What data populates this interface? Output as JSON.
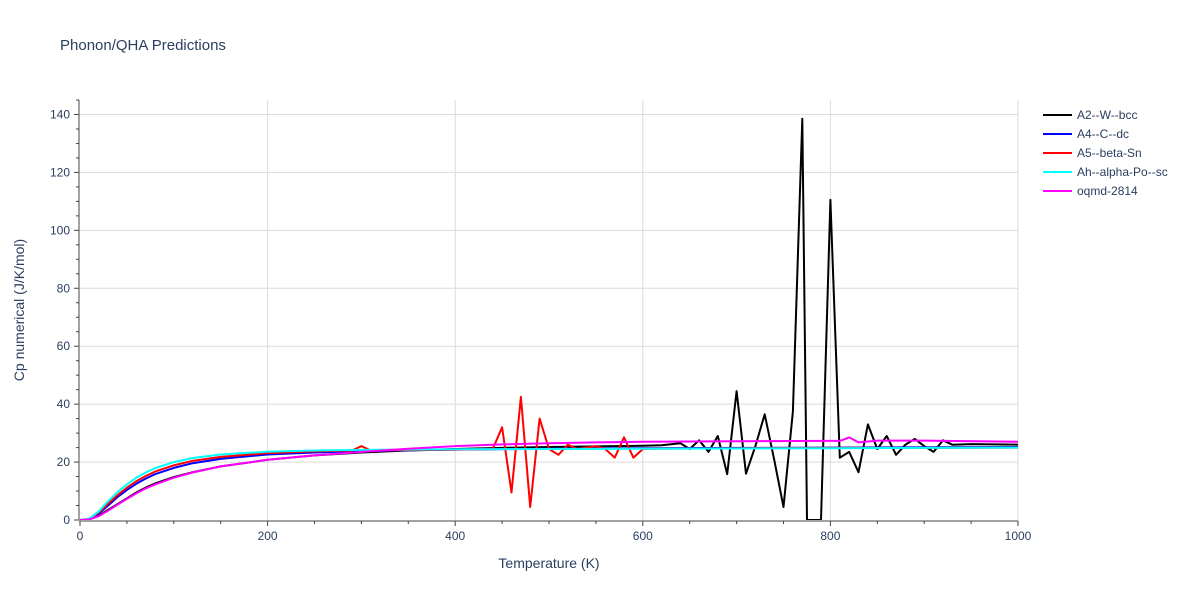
{
  "chart_data": {
    "type": "line",
    "title": "Phonon/QHA Predictions",
    "xlabel": "Temperature (K)",
    "ylabel": "Cp numerical (J/K/mol)",
    "xlim": [
      0,
      1000
    ],
    "ylim": [
      0,
      145
    ],
    "xticks": [
      0,
      200,
      400,
      600,
      800,
      1000
    ],
    "yticks": [
      0,
      20,
      40,
      60,
      80,
      100,
      120,
      140
    ],
    "grid": true,
    "legend_position": "top-right",
    "series": [
      {
        "name": "A2--W--bcc",
        "color": "#000000",
        "x": [
          0,
          10,
          20,
          30,
          40,
          50,
          60,
          70,
          80,
          100,
          120,
          150,
          200,
          250,
          300,
          350,
          400,
          450,
          500,
          550,
          600,
          620,
          640,
          650,
          660,
          670,
          680,
          690,
          700,
          710,
          720,
          730,
          740,
          750,
          760,
          770,
          775,
          780,
          790,
          800,
          810,
          820,
          830,
          840,
          850,
          860,
          870,
          880,
          890,
          900,
          910,
          920,
          930,
          950,
          1000
        ],
        "y": [
          0,
          0.2,
          1.5,
          3.5,
          5.5,
          7.5,
          9.5,
          11.2,
          12.6,
          14.8,
          16.5,
          18.5,
          20.8,
          22.3,
          23.3,
          24.0,
          24.5,
          24.9,
          25.2,
          25.4,
          25.6,
          25.8,
          26.5,
          24.5,
          27.5,
          23.5,
          29.0,
          15.8,
          44.5,
          16.0,
          25.5,
          36.5,
          21.0,
          4.5,
          37.5,
          138.5,
          0,
          0,
          0,
          110.5,
          21.5,
          23.5,
          16.5,
          33.0,
          24.5,
          29.0,
          22.5,
          26.0,
          28.0,
          25.5,
          23.5,
          27.5,
          26.0,
          26.2,
          26.0
        ]
      },
      {
        "name": "A4--C--dc",
        "color": "#0000ff",
        "x": [
          0,
          10,
          20,
          30,
          40,
          50,
          60,
          70,
          80,
          100,
          120,
          150,
          200,
          250,
          300,
          400,
          500,
          600,
          700,
          800,
          900,
          1000
        ],
        "y": [
          0,
          0.3,
          2.2,
          5.0,
          7.9,
          10.4,
          12.5,
          14.3,
          15.8,
          18.0,
          19.6,
          21.1,
          22.6,
          23.3,
          23.8,
          24.3,
          24.6,
          24.8,
          24.9,
          25.0,
          25.1,
          25.2
        ]
      },
      {
        "name": "A5--beta-Sn",
        "color": "#ff0000",
        "x": [
          0,
          10,
          20,
          30,
          40,
          50,
          60,
          70,
          80,
          100,
          120,
          150,
          200,
          250,
          290,
          300,
          310,
          400,
          440,
          450,
          460,
          470,
          480,
          490,
          500,
          510,
          520,
          530,
          540,
          550,
          560,
          570,
          580,
          590,
          600,
          610,
          700,
          800,
          900,
          1000
        ],
        "y": [
          0,
          0.4,
          2.6,
          5.6,
          8.6,
          11.2,
          13.4,
          15.2,
          16.7,
          18.9,
          20.4,
          21.8,
          23.1,
          23.7,
          24.0,
          25.5,
          24.0,
          24.3,
          24.5,
          32.0,
          9.5,
          42.5,
          4.5,
          35.0,
          24.5,
          22.5,
          26.0,
          24.5,
          25.0,
          25.5,
          24.5,
          21.5,
          28.5,
          21.5,
          24.5,
          24.6,
          24.8,
          24.9,
          24.9,
          25.0
        ]
      },
      {
        "name": "Ah--alpha-Po--sc",
        "color": "#00ffff",
        "x": [
          0,
          10,
          20,
          30,
          40,
          50,
          60,
          70,
          80,
          100,
          120,
          150,
          200,
          250,
          300,
          400,
          500,
          600,
          700,
          800,
          900,
          1000
        ],
        "y": [
          0,
          0.5,
          3.0,
          6.5,
          9.6,
          12.3,
          14.6,
          16.4,
          17.9,
          20.0,
          21.4,
          22.6,
          23.6,
          24.0,
          24.2,
          24.4,
          24.5,
          24.6,
          24.7,
          24.8,
          24.9,
          25.0
        ]
      },
      {
        "name": "oqmd-2814",
        "color": "#ff00ff",
        "x": [
          0,
          10,
          20,
          30,
          40,
          50,
          60,
          70,
          80,
          100,
          120,
          150,
          200,
          250,
          300,
          350,
          400,
          450,
          500,
          550,
          600,
          650,
          700,
          800,
          810,
          820,
          830,
          850,
          900,
          1000
        ],
        "y": [
          0,
          0.2,
          1.3,
          3.2,
          5.3,
          7.3,
          9.2,
          10.9,
          12.3,
          14.6,
          16.4,
          18.5,
          20.8,
          22.3,
          23.5,
          24.6,
          25.5,
          26.1,
          26.5,
          26.8,
          27.0,
          27.1,
          27.2,
          27.3,
          27.3,
          28.5,
          26.8,
          27.4,
          27.4,
          27.0
        ]
      }
    ]
  }
}
